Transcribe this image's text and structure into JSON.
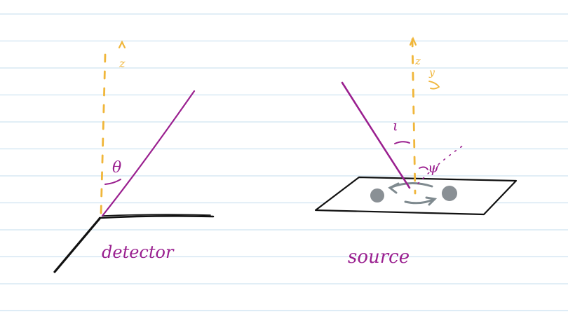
{
  "notebook": {
    "rule_color": "#cfe3f1",
    "rule_count": 12
  },
  "colors": {
    "ink_black": "#111111",
    "ink_purple": "#9a1f8f",
    "ink_yellow": "#f0b63a",
    "source_spot": "#8a9095",
    "source_arrow": "#7f8a8f"
  },
  "detector": {
    "axis_label": "z",
    "angle_label": "θ",
    "caption": "detector"
  },
  "source": {
    "axis_label": "z",
    "axis_label_2": "y",
    "angle_label": "ι",
    "azimuth_label": "ψ",
    "caption": "source"
  }
}
